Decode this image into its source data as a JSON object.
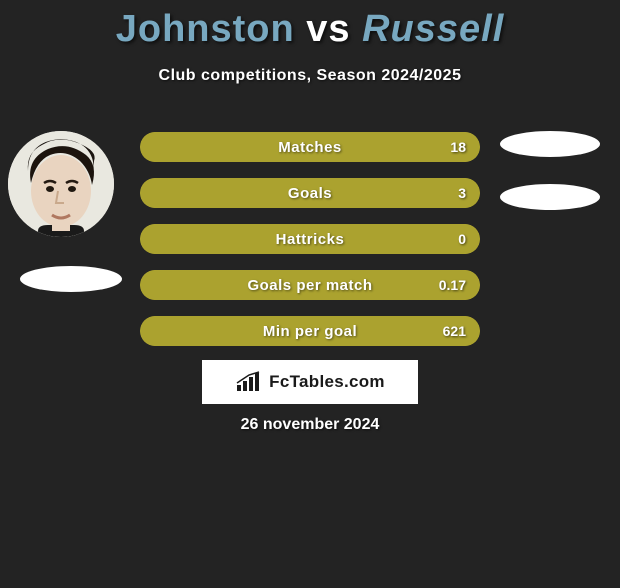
{
  "background_color": "#232323",
  "title": {
    "player1": "Johnston",
    "vs": "vs",
    "player2": "Russell",
    "player_color": "#78a8c0",
    "vs_color": "#ffffff",
    "fontsize": 38
  },
  "subtitle": "Club competitions, Season 2024/2025",
  "avatars": {
    "left_has_photo": true,
    "right_has_photo": false
  },
  "stats": {
    "bar_bg_color": "#aba22f",
    "bar_fill_color": "#aba22f",
    "bar_border_color": "#aba22f",
    "text_color": "#ffffff",
    "rows": [
      {
        "label": "Matches",
        "value": "18",
        "fill_pct": 100
      },
      {
        "label": "Goals",
        "value": "3",
        "fill_pct": 100
      },
      {
        "label": "Hattricks",
        "value": "0",
        "fill_pct": 100
      },
      {
        "label": "Goals per match",
        "value": "0.17",
        "fill_pct": 100
      },
      {
        "label": "Min per goal",
        "value": "621",
        "fill_pct": 100
      }
    ]
  },
  "brand": {
    "text": "FcTables.com",
    "bg_color": "#ffffff",
    "text_color": "#1a1a1a",
    "icon_color": "#1a1a1a"
  },
  "date": "26 november 2024"
}
